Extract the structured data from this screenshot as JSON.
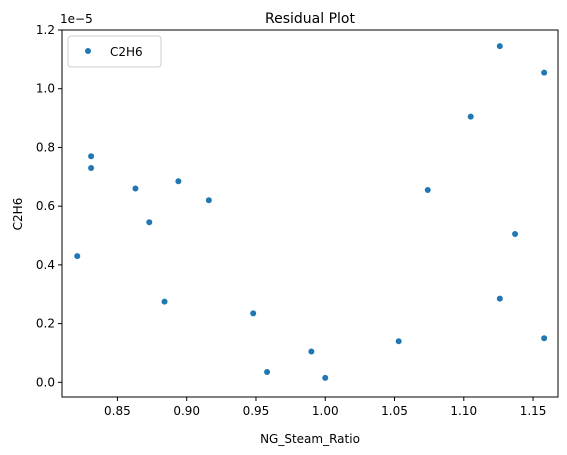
{
  "chart_data": {
    "type": "scatter",
    "title": "Residual Plot",
    "xlabel": "NG_Steam_Ratio",
    "ylabel": "C2H6",
    "offset_label": "1e−5",
    "xlim": [
      0.81,
      1.168
    ],
    "ylim": [
      -0.05,
      1.2
    ],
    "xticks": [
      0.85,
      0.9,
      0.95,
      1.0,
      1.05,
      1.1,
      1.15
    ],
    "xtick_labels": [
      "0.85",
      "0.90",
      "0.95",
      "1.00",
      "1.05",
      "1.10",
      "1.15"
    ],
    "yticks": [
      0.0,
      0.2,
      0.4,
      0.6,
      0.8,
      1.0,
      1.2
    ],
    "ytick_labels": [
      "0.0",
      "0.2",
      "0.4",
      "0.6",
      "0.8",
      "1.0",
      "1.2"
    ],
    "grid": false,
    "legend_position": "top-left",
    "series": [
      {
        "name": "C2H6",
        "color": "#1f77b4",
        "points": [
          {
            "x": 0.821,
            "y": 0.43
          },
          {
            "x": 0.831,
            "y": 0.77
          },
          {
            "x": 0.831,
            "y": 0.73
          },
          {
            "x": 0.863,
            "y": 0.66
          },
          {
            "x": 0.873,
            "y": 0.545
          },
          {
            "x": 0.884,
            "y": 0.275
          },
          {
            "x": 0.894,
            "y": 0.685
          },
          {
            "x": 0.916,
            "y": 0.62
          },
          {
            "x": 0.948,
            "y": 0.235
          },
          {
            "x": 0.958,
            "y": 0.035
          },
          {
            "x": 0.99,
            "y": 0.105
          },
          {
            "x": 1.0,
            "y": 0.015
          },
          {
            "x": 1.053,
            "y": 0.14
          },
          {
            "x": 1.074,
            "y": 0.655
          },
          {
            "x": 1.105,
            "y": 0.905
          },
          {
            "x": 1.126,
            "y": 1.145
          },
          {
            "x": 1.126,
            "y": 0.285
          },
          {
            "x": 1.137,
            "y": 0.505
          },
          {
            "x": 1.158,
            "y": 1.055
          },
          {
            "x": 1.158,
            "y": 0.15
          }
        ]
      }
    ]
  }
}
